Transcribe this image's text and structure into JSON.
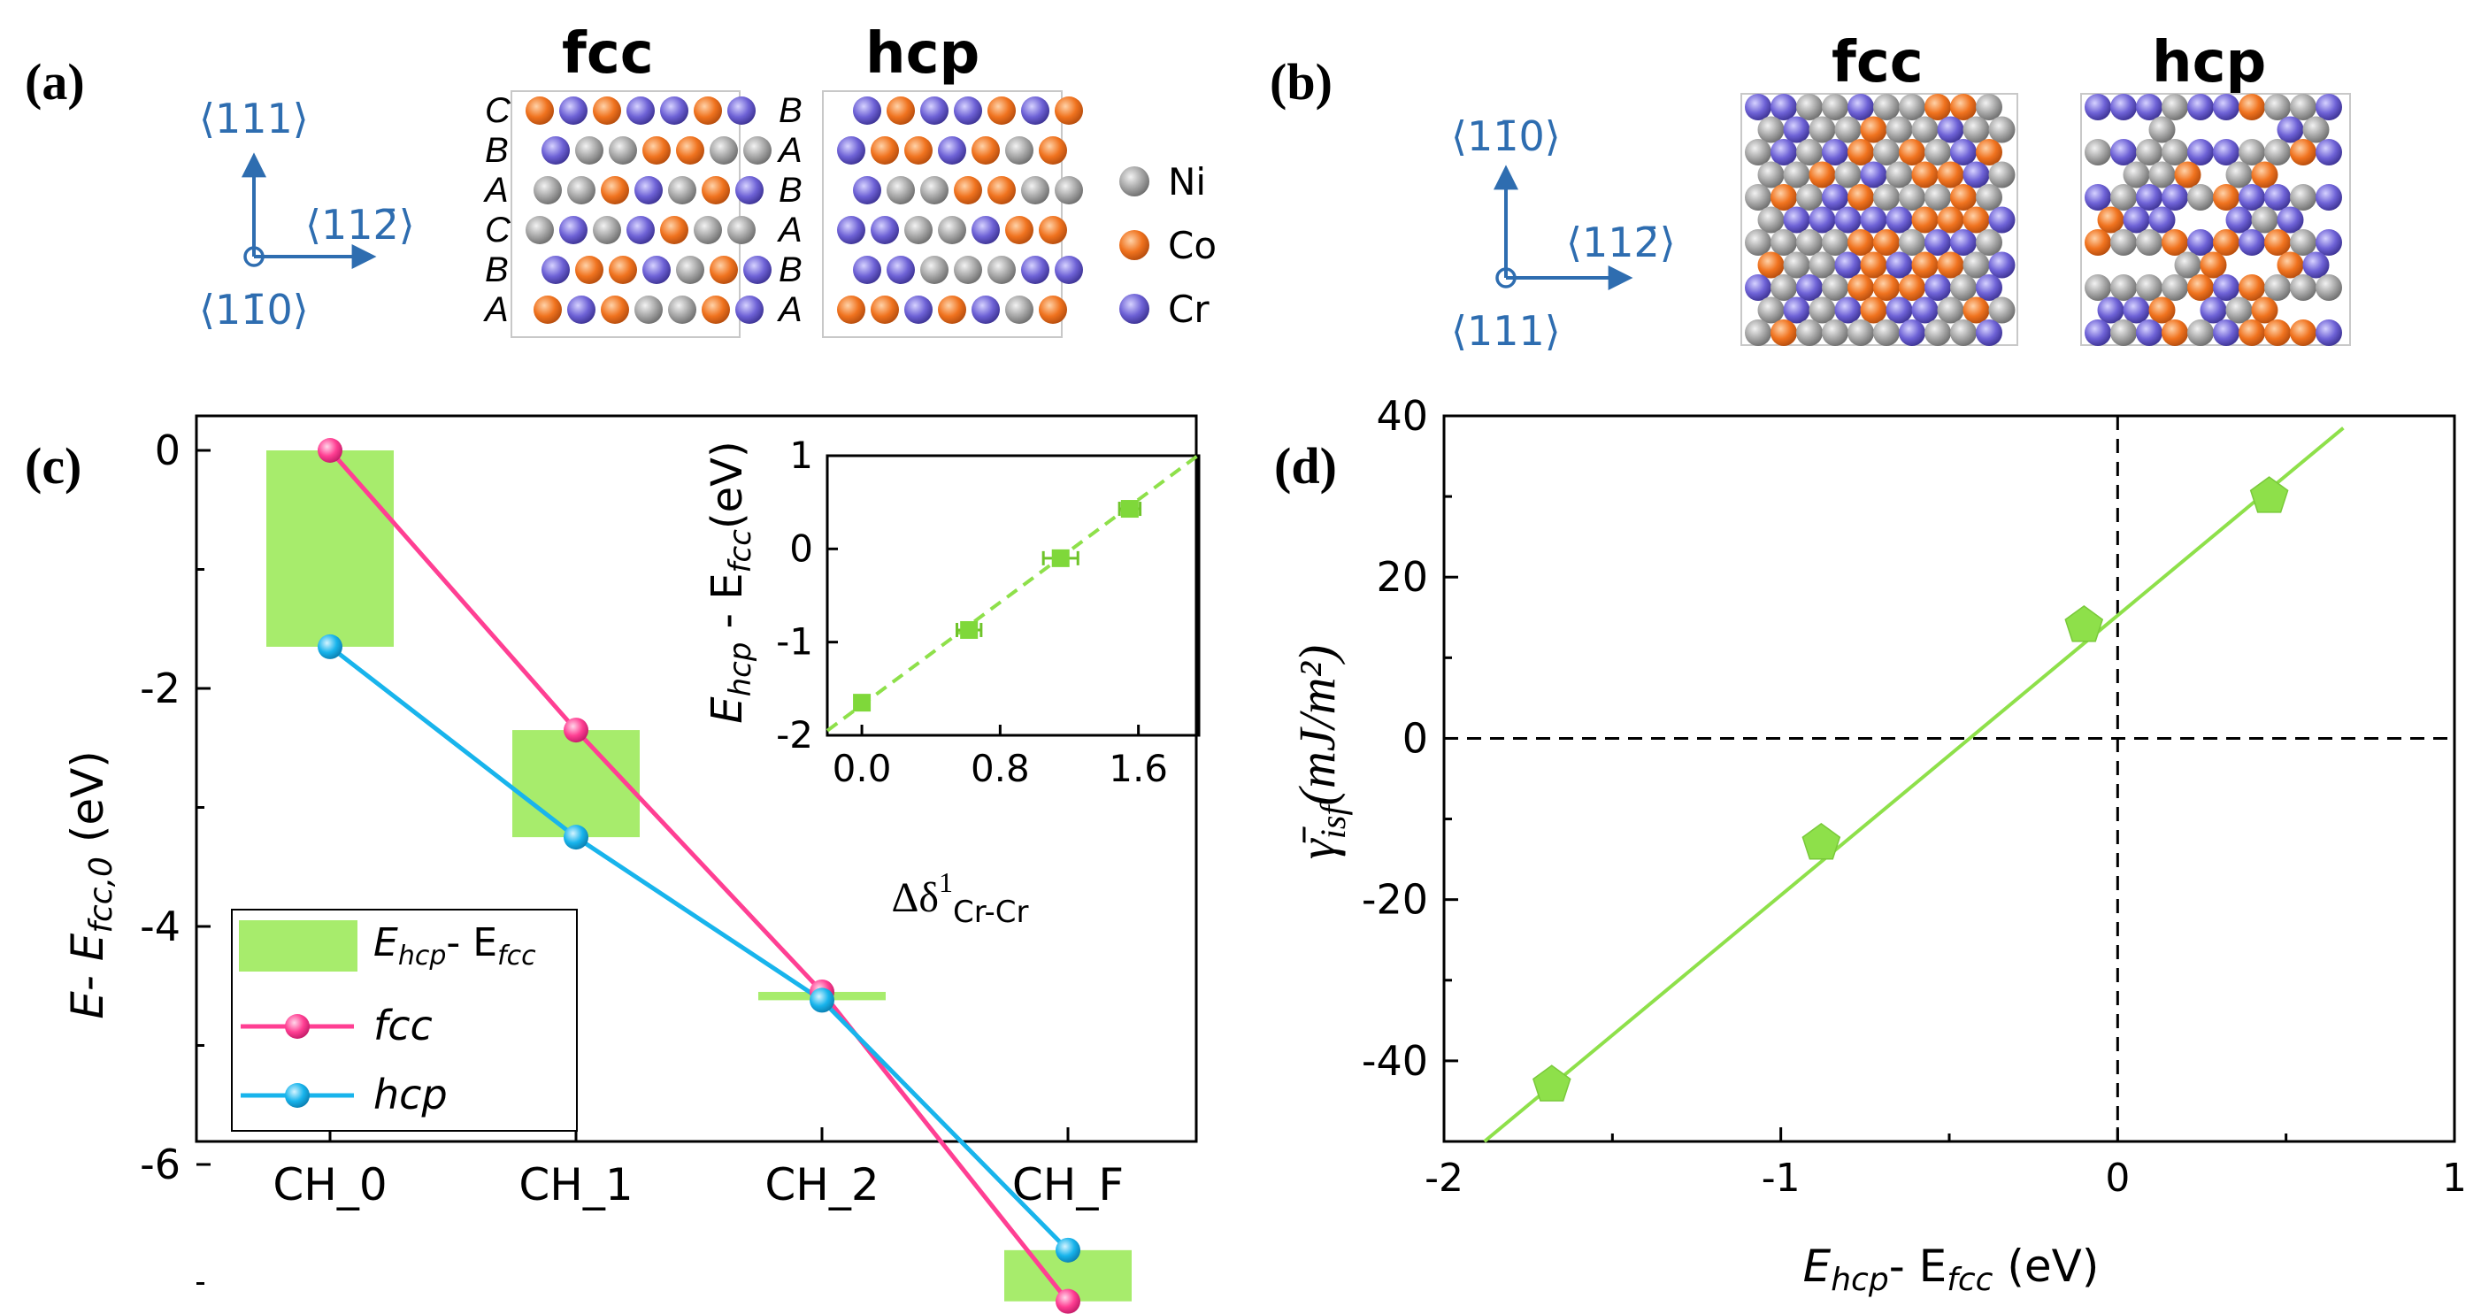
{
  "colors": {
    "ni": "#a4a4a4",
    "co": "#ee6f20",
    "cr": "#6e62d6",
    "blue_axis": "#2e6db0",
    "green": "#8ee04a",
    "green_band": "#a7ec6c",
    "pink": "#ff3f93",
    "cyan": "#18b4ec"
  },
  "panel_a": {
    "label": "(a)",
    "axis_up": "⟨111⟩",
    "axis_right": "⟨112̄⟩",
    "axis_out": "⟨11̄0⟩",
    "fcc_title": "fcc",
    "hcp_title": "hcp",
    "fcc_stack": [
      "C",
      "B",
      "A",
      "C",
      "B",
      "A"
    ],
    "hcp_stack": [
      "B",
      "A",
      "B",
      "A",
      "B",
      "A"
    ],
    "legend": [
      {
        "label": "Ni",
        "color_key": "ni"
      },
      {
        "label": "Co",
        "color_key": "co"
      },
      {
        "label": "Cr",
        "color_key": "cr"
      }
    ],
    "fcc_rows": [
      [
        "co",
        "cr",
        "co",
        "cr",
        "cr",
        "co",
        "cr"
      ],
      [
        "cr",
        "ni",
        "ni",
        "co",
        "co",
        "ni",
        "ni"
      ],
      [
        "ni",
        "ni",
        "co",
        "cr",
        "ni",
        "co",
        "cr"
      ],
      [
        "ni",
        "cr",
        "ni",
        "cr",
        "co",
        "ni",
        "ni"
      ],
      [
        "cr",
        "co",
        "co",
        "cr",
        "ni",
        "co",
        "cr"
      ],
      [
        "co",
        "cr",
        "co",
        "ni",
        "ni",
        "co",
        "cr"
      ]
    ],
    "hcp_rows": [
      [
        "cr",
        "co",
        "cr",
        "cr",
        "co",
        "cr",
        "co"
      ],
      [
        "cr",
        "co",
        "co",
        "cr",
        "co",
        "ni",
        "co"
      ],
      [
        "cr",
        "ni",
        "ni",
        "co",
        "co",
        "ni",
        "ni"
      ],
      [
        "cr",
        "cr",
        "ni",
        "ni",
        "cr",
        "co",
        "co"
      ],
      [
        "cr",
        "cr",
        "ni",
        "ni",
        "ni",
        "cr",
        "cr"
      ],
      [
        "co",
        "co",
        "cr",
        "co",
        "cr",
        "ni",
        "co"
      ]
    ]
  },
  "panel_b": {
    "label": "(b)",
    "axis_up": "⟨11̄0⟩",
    "axis_right": "⟨112̄⟩",
    "axis_out": "⟨111⟩",
    "fcc_title": "fcc",
    "hcp_title": "hcp"
  },
  "panel_c": {
    "label": "(c)",
    "ylabel_main": "E- E",
    "ylabel_sub": "fcc,0",
    "ylabel_unit": " (eV)",
    "yticks": [
      "0",
      "-2",
      "-4",
      "-6"
    ],
    "legend": {
      "band_label_E": "E",
      "band_label_hcp": "hcp",
      "band_label_mid": "- E",
      "band_label_fcc": "fcc",
      "fcc_label": "fcc",
      "hcp_label": "hcp"
    },
    "chart_data": {
      "type": "line",
      "categories": [
        "CH_0",
        "CH_1",
        "CH_2",
        "CH_F"
      ],
      "ylim": [
        -7.6,
        0.4
      ],
      "series": [
        {
          "name": "fcc",
          "values": [
            0.0,
            -2.35,
            -4.55,
            -7.15
          ]
        },
        {
          "name": "hcp",
          "values": [
            -1.65,
            -3.25,
            -4.62,
            -6.72
          ]
        }
      ],
      "bands": [
        {
          "name": "Ehcp- Efcc",
          "from": 0.0,
          "to": -1.65
        },
        {
          "name": "Ehcp- Efcc",
          "from": -2.35,
          "to": -3.25
        },
        {
          "name": "Ehcp- Efcc",
          "from": -4.55,
          "to": -4.62
        },
        {
          "name": "Ehcp- Efcc",
          "from": -6.72,
          "to": -7.15
        }
      ]
    },
    "inset": {
      "ylabel_E1": "E",
      "ylabel_sub1": "hcp",
      "ylabel_mid": " - E",
      "ylabel_sub2": "fcc",
      "ylabel_unit": "(eV)",
      "xlabel_main": "Δδ",
      "xlabel_sup": "1",
      "xlabel_sub": "Cr-Cr",
      "xticks": [
        "0.0",
        "0.8",
        "1.6"
      ],
      "yticks": [
        "1",
        "0",
        "-1",
        "-2"
      ],
      "chart_data": {
        "type": "scatter",
        "xlim": [
          -0.2,
          1.95
        ],
        "ylim": [
          -2,
          1
        ],
        "points": [
          {
            "x": 0.0,
            "y": -1.65,
            "xerr": 0.02
          },
          {
            "x": 0.62,
            "y": -0.87,
            "xerr": 0.07
          },
          {
            "x": 1.15,
            "y": -0.1,
            "xerr": 0.1
          },
          {
            "x": 1.55,
            "y": 0.43,
            "xerr": 0.06
          }
        ],
        "fit": {
          "x": [
            -0.2,
            1.95
          ],
          "y": [
            -1.95,
            1.0
          ],
          "style": "dashed"
        }
      }
    }
  },
  "panel_d": {
    "label": "(d)",
    "ylabel_sym": "γ̄",
    "ylabel_sub": "isf",
    "ylabel_unit": "(mJ/m²)",
    "xlabel_E1": "E",
    "xlabel_sub1": "hcp",
    "xlabel_mid": "- E",
    "xlabel_sub2": "fcc",
    "xlabel_unit": " (eV)",
    "xticks": [
      "-2",
      "-1",
      "0",
      "1"
    ],
    "yticks": [
      "40",
      "20",
      "0",
      "-20",
      "-40"
    ],
    "chart_data": {
      "type": "scatter",
      "xlim": [
        -2,
        1
      ],
      "ylim": [
        -50,
        40
      ],
      "points": [
        {
          "x": -1.68,
          "y": -43
        },
        {
          "x": -0.88,
          "y": -13
        },
        {
          "x": -0.1,
          "y": 14
        },
        {
          "x": 0.45,
          "y": 30
        }
      ],
      "fit": {
        "x": [
          -1.88,
          0.67
        ],
        "y": [
          -50,
          38.5
        ]
      },
      "reference_lines": {
        "x": 0,
        "y": 0
      }
    }
  }
}
